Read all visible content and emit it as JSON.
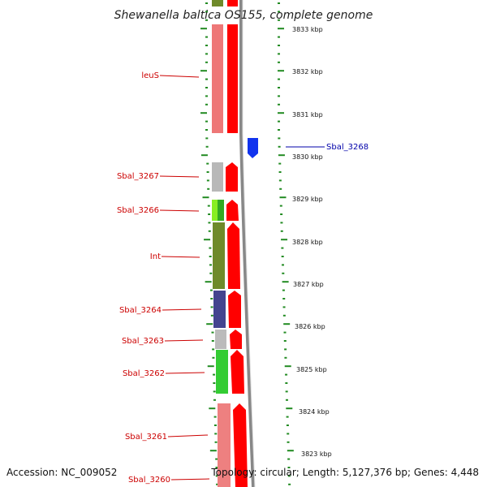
{
  "title": "Shewanella baltica OS155, complete genome",
  "footer": {
    "accession": "Accession: NC_009052",
    "topology": "Topology: circular; Length: 5,127,376 bp; Genes: 4,448"
  },
  "kbp_ticks": [
    "3833 kbp",
    "3832 kbp",
    "3831 kbp",
    "3830 kbp",
    "3829 kbp",
    "3828 kbp",
    "3827 kbp",
    "3826 kbp",
    "3825 kbp",
    "3824 kbp",
    "3823 kbp"
  ],
  "genes": [
    {
      "label": "leuS",
      "color": "#ee7777"
    },
    {
      "label": "Sbal_3268",
      "color": "#1133dd"
    },
    {
      "label": "Sbal_3267",
      "color": "#b8b8b8"
    },
    {
      "label": "Sbal_3266",
      "color": "#88dd22"
    },
    {
      "label": "Int",
      "color": "#6f8a2a"
    },
    {
      "label": "Sbal_3264",
      "color": "#44448f"
    },
    {
      "label": "Sbal_3263",
      "color": "#bbbbbb"
    },
    {
      "label": "Sbal_3262",
      "color": "#33cc33"
    },
    {
      "label": "Sbal_3261",
      "color": "#ee8080"
    },
    {
      "label": "Sbal_3260",
      "color": "#ee8080"
    }
  ],
  "colors": {
    "forward_strand": "#ff0000",
    "reverse_strand": "#1122ee",
    "axis": "#888888",
    "ticks": "#228b22",
    "label_line": "#cc0000"
  }
}
